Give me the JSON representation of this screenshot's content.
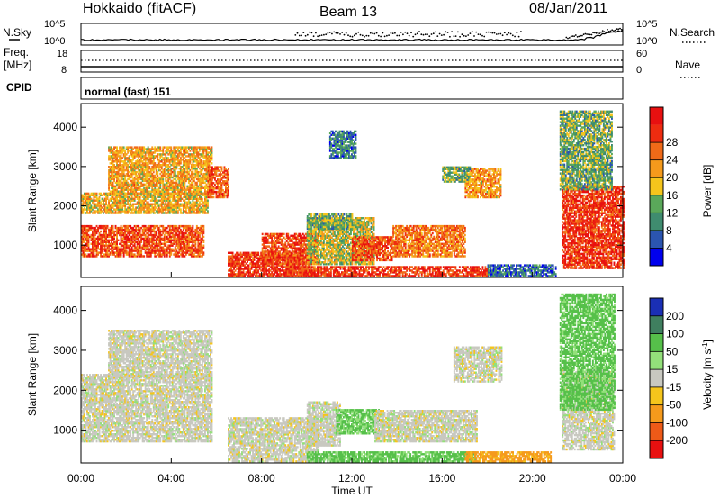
{
  "header": {
    "station": "Hokkaido (fitACF)",
    "beam": "Beam 13",
    "date": "08/Jan/2011"
  },
  "noise_panel": {
    "left_label": "N.Sky",
    "right_label": "N.Search",
    "left_ticks": [
      "10^5",
      "10^0"
    ],
    "right_ticks": [
      "10^5",
      "10^0"
    ]
  },
  "freq_panel": {
    "left_label_1": "Freq.",
    "left_label_2": "[MHz]",
    "right_label": "Nave",
    "left_ticks": [
      "18",
      "8"
    ],
    "right_ticks": [
      "60",
      "0"
    ]
  },
  "cpid": {
    "label": "CPID",
    "value": "normal (fast) 151"
  },
  "x_axis": {
    "title": "Time UT",
    "ticks": [
      "00:00",
      "04:00",
      "08:00",
      "12:00",
      "16:00",
      "20:00",
      "00:00"
    ]
  },
  "chart_data": [
    {
      "type": "heatmap",
      "name": "power",
      "ylabel": "Slant Range [km]",
      "yticks": [
        "1000",
        "2000",
        "3000",
        "4000"
      ],
      "ylim": [
        180,
        4600
      ],
      "xlim_hours": [
        0,
        24
      ],
      "colorbar": {
        "label": "Power [dB]",
        "ticks": [
          "4",
          "8",
          "12",
          "16",
          "20",
          "24",
          "28"
        ],
        "colors": [
          "#0000ee",
          "#2b55b0",
          "#3f8c6f",
          "#5aa85a",
          "#f5c51c",
          "#f59a1c",
          "#f06a18",
          "#ee2c10",
          "#e81010"
        ]
      },
      "regions": [
        {
          "t": [
            0.0,
            5.4
          ],
          "r": [
            700,
            1500
          ],
          "v": 25
        },
        {
          "t": [
            0.0,
            5.6
          ],
          "r": [
            1800,
            2300
          ],
          "v": 18
        },
        {
          "t": [
            1.2,
            5.8
          ],
          "r": [
            2300,
            3500
          ],
          "v": 19
        },
        {
          "t": [
            5.6,
            6.5
          ],
          "r": [
            2200,
            3000
          ],
          "v": 24
        },
        {
          "t": [
            6.5,
            10.2
          ],
          "r": [
            200,
            800
          ],
          "v": 27
        },
        {
          "t": [
            8.0,
            10.5
          ],
          "r": [
            500,
            1300
          ],
          "v": 26
        },
        {
          "t": [
            10.0,
            13.0
          ],
          "r": [
            500,
            1700
          ],
          "v": 15
        },
        {
          "t": [
            10.0,
            12.0
          ],
          "r": [
            1400,
            1800
          ],
          "v": 12
        },
        {
          "t": [
            12.0,
            13.8
          ],
          "r": [
            600,
            1200
          ],
          "v": 25
        },
        {
          "t": [
            13.8,
            17.0
          ],
          "r": [
            700,
            1500
          ],
          "v": 22
        },
        {
          "t": [
            17.0,
            18.6
          ],
          "r": [
            2200,
            2950
          ],
          "v": 20
        },
        {
          "t": [
            16.0,
            17.2
          ],
          "r": [
            2600,
            3000
          ],
          "v": 12
        },
        {
          "t": [
            18.0,
            21.0
          ],
          "r": [
            200,
            500
          ],
          "v": 7
        },
        {
          "t": [
            9.0,
            18.0
          ],
          "r": [
            200,
            450
          ],
          "v": 27
        },
        {
          "t": [
            11.0,
            12.2
          ],
          "r": [
            3200,
            3900
          ],
          "v": 8
        },
        {
          "t": [
            21.3,
            24.0
          ],
          "r": [
            400,
            2500
          ],
          "v": 27
        },
        {
          "t": [
            21.2,
            23.5
          ],
          "r": [
            2400,
            4400
          ],
          "v": 12
        }
      ]
    },
    {
      "type": "heatmap",
      "name": "velocity",
      "ylabel": "Slant Range [km]",
      "yticks": [
        "1000",
        "2000",
        "3000",
        "4000"
      ],
      "ylim": [
        180,
        4600
      ],
      "xlim_hours": [
        0,
        24
      ],
      "colorbar": {
        "label": "Velocity [m s-1]",
        "ticks": [
          "200",
          "100",
          "50",
          "15",
          "-15",
          "-50",
          "-100",
          "-200"
        ],
        "colors": [
          "#1a2fb5",
          "#3f7f5f",
          "#56c04a",
          "#93e07a",
          "#c8c8c0",
          "#f5c51c",
          "#f59a1c",
          "#ee5a18",
          "#e81010"
        ]
      },
      "regions": [
        {
          "t": [
            0.0,
            5.8
          ],
          "r": [
            700,
            2400
          ],
          "v": 0
        },
        {
          "t": [
            1.2,
            5.8
          ],
          "r": [
            2300,
            3500
          ],
          "v": 0
        },
        {
          "t": [
            6.5,
            10.5
          ],
          "r": [
            200,
            1300
          ],
          "v": 0
        },
        {
          "t": [
            10.0,
            11.5
          ],
          "r": [
            600,
            1700
          ],
          "v": 0
        },
        {
          "t": [
            11.3,
            13.2
          ],
          "r": [
            900,
            1500
          ],
          "v": 55
        },
        {
          "t": [
            13.0,
            17.5
          ],
          "r": [
            700,
            1500
          ],
          "v": 0
        },
        {
          "t": [
            10.0,
            17.5
          ],
          "r": [
            200,
            450
          ],
          "v": 60
        },
        {
          "t": [
            17.0,
            20.8
          ],
          "r": [
            200,
            450
          ],
          "v": -60
        },
        {
          "t": [
            16.5,
            18.6
          ],
          "r": [
            2200,
            3100
          ],
          "v": 0
        },
        {
          "t": [
            21.3,
            23.6
          ],
          "r": [
            500,
            2500
          ],
          "v": 0
        },
        {
          "t": [
            21.2,
            23.6
          ],
          "r": [
            1500,
            4400
          ],
          "v": 60
        }
      ]
    }
  ]
}
